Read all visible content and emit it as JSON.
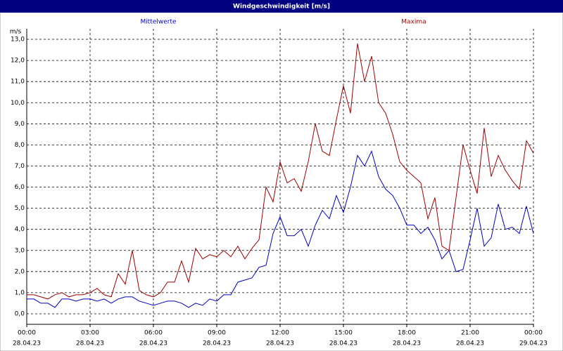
{
  "chart_data": {
    "type": "line",
    "title": "Windgeschwindigkeit [m/s]",
    "y_unit": "m/s",
    "x": [
      0,
      20,
      40,
      60,
      80,
      100,
      120,
      140,
      160,
      180,
      200,
      220,
      240,
      260,
      280,
      300,
      320,
      340,
      360,
      380,
      400,
      420,
      440,
      460,
      480,
      500,
      520,
      540,
      560,
      580,
      600,
      620,
      640,
      660,
      680,
      700,
      720,
      740,
      760,
      780,
      800,
      820,
      840,
      860,
      880,
      900,
      920,
      940,
      960,
      980,
      1000,
      1020,
      1040,
      1060,
      1080,
      1100,
      1120,
      1140,
      1160,
      1180,
      1200,
      1220,
      1240,
      1260,
      1280,
      1300,
      1320,
      1340,
      1360,
      1380,
      1400,
      1420,
      1440
    ],
    "series": [
      {
        "name": "Mittelwerte",
        "color": "#0000c0",
        "values": [
          0.7,
          0.7,
          0.5,
          0.5,
          0.3,
          0.7,
          0.7,
          0.6,
          0.7,
          0.7,
          0.6,
          0.7,
          0.5,
          0.7,
          0.8,
          0.8,
          0.6,
          0.5,
          0.4,
          0.5,
          0.6,
          0.6,
          0.5,
          0.3,
          0.5,
          0.4,
          0.7,
          0.6,
          0.9,
          0.9,
          1.5,
          1.6,
          1.7,
          2.2,
          2.3,
          3.8,
          4.6,
          3.7,
          3.7,
          4.0,
          3.2,
          4.2,
          4.9,
          4.5,
          5.6,
          4.8,
          6.0,
          7.5,
          7.0,
          7.7,
          6.5,
          5.9,
          5.6,
          5.0,
          4.2,
          4.2,
          3.8,
          4.1,
          3.5,
          2.6,
          3.0,
          2.0,
          2.1,
          3.5,
          5.0,
          3.2,
          3.6,
          5.2,
          4.0,
          4.1,
          3.8,
          5.1,
          3.8
        ]
      },
      {
        "name": "Maxima",
        "color": "#a00000",
        "values": [
          0.9,
          0.9,
          0.8,
          0.7,
          0.9,
          1.0,
          0.8,
          0.9,
          0.9,
          1.0,
          1.2,
          0.9,
          0.8,
          1.9,
          1.4,
          3.0,
          1.1,
          0.9,
          0.8,
          1.0,
          1.5,
          1.5,
          2.5,
          1.5,
          3.1,
          2.6,
          2.8,
          2.7,
          3.0,
          2.7,
          3.2,
          2.6,
          3.1,
          3.5,
          6.0,
          5.3,
          7.2,
          6.2,
          6.4,
          5.8,
          7.2,
          9.0,
          7.7,
          7.5,
          9.2,
          10.8,
          9.5,
          12.8,
          11.0,
          12.2,
          10.0,
          9.5,
          8.5,
          7.2,
          6.8,
          6.5,
          6.2,
          4.5,
          5.5,
          3.2,
          3.0,
          5.5,
          8.0,
          6.8,
          5.7,
          8.8,
          6.5,
          7.5,
          6.8,
          6.3,
          5.9,
          8.2,
          7.6
        ]
      }
    ],
    "xlim": [
      0,
      1440
    ],
    "xticks": [
      {
        "value": 0,
        "label": "00:00",
        "date": "28.04.23"
      },
      {
        "value": 180,
        "label": "03:00",
        "date": "28.04.23"
      },
      {
        "value": 360,
        "label": "06:00",
        "date": "28.04.23"
      },
      {
        "value": 540,
        "label": "09:00",
        "date": "28.04.23"
      },
      {
        "value": 720,
        "label": "12:00",
        "date": "28.04.23"
      },
      {
        "value": 900,
        "label": "15:00",
        "date": "28.04.23"
      },
      {
        "value": 1080,
        "label": "18:00",
        "date": "28.04.23"
      },
      {
        "value": 1260,
        "label": "21:00",
        "date": "28.04.23"
      },
      {
        "value": 1440,
        "label": "00:00",
        "date": "29.04.23"
      }
    ],
    "ylim": [
      -0.5,
      13.5
    ],
    "yticks": [
      {
        "value": 0,
        "label": "0,0"
      },
      {
        "value": 1,
        "label": "1,0"
      },
      {
        "value": 2,
        "label": "2,0"
      },
      {
        "value": 3,
        "label": "3,0"
      },
      {
        "value": 4,
        "label": "4,0"
      },
      {
        "value": 5,
        "label": "5,0"
      },
      {
        "value": 6,
        "label": "6,0"
      },
      {
        "value": 7,
        "label": "7,0"
      },
      {
        "value": 8,
        "label": "8,0"
      },
      {
        "value": 9,
        "label": "9,0"
      },
      {
        "value": 10,
        "label": "10,0"
      },
      {
        "value": 11,
        "label": "11,0"
      },
      {
        "value": 12,
        "label": "12,0"
      },
      {
        "value": 13,
        "label": "13,0"
      }
    ],
    "grid": true
  }
}
